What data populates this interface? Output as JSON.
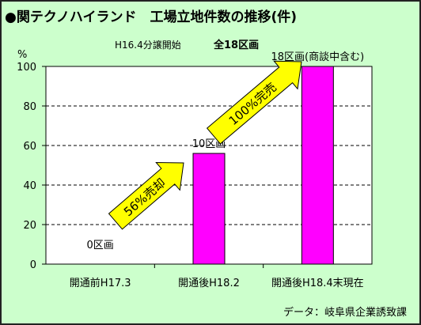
{
  "chart_data": {
    "type": "bar",
    "title": "●関テクノハイランド　工場立地件数の推移(件)",
    "subtitle": "H16.4分譲開始",
    "subtitle_bold": "全18区画",
    "ylabel": "%",
    "source": "データ：岐阜県企業誘致課",
    "ylim": [
      0,
      100
    ],
    "yticks": [
      "0",
      "20",
      "40",
      "60",
      "80",
      "100"
    ],
    "grid": true,
    "categories": [
      "開通前H17.3",
      "開通後H18.2",
      "開通後H18.4末現在"
    ],
    "values": [
      0,
      56,
      100
    ],
    "bar_color": "#ff00ff",
    "data_labels": [
      "0区画",
      "10区画",
      "18区画(商談中含む)"
    ],
    "annotations": [
      "56%売却",
      "100%完売"
    ],
    "arrow_color": "#ffff00"
  }
}
